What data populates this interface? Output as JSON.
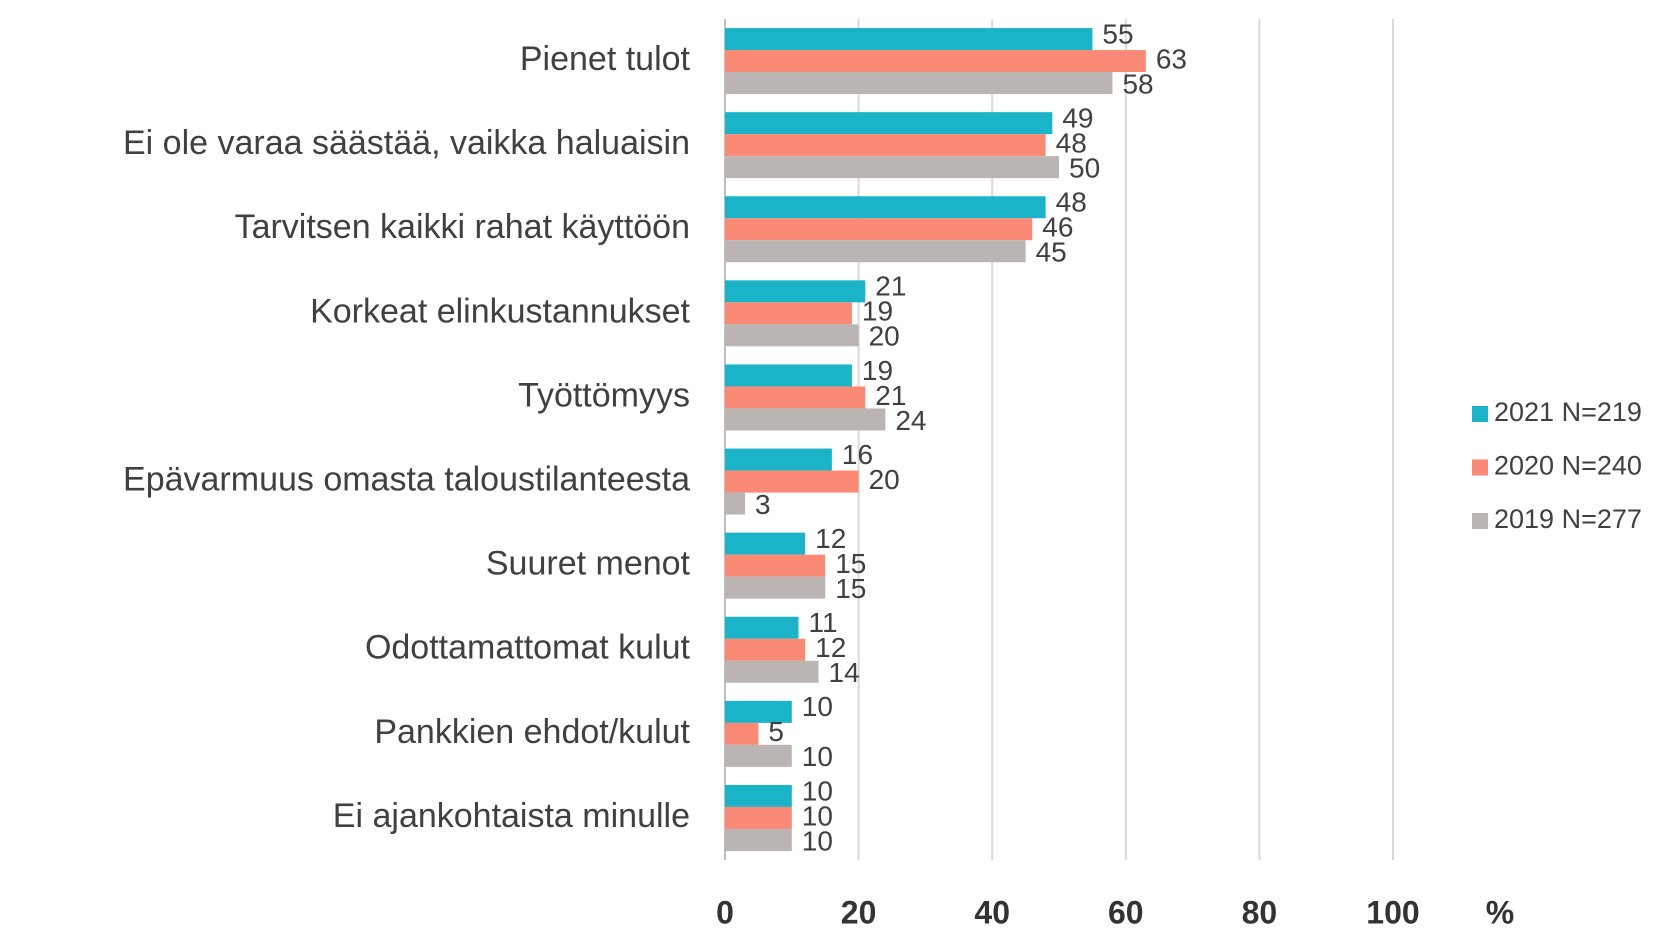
{
  "chart_data": {
    "type": "bar",
    "orientation": "horizontal",
    "categories": [
      "Pienet tulot",
      "Ei ole varaa säästää, vaikka haluaisin",
      "Tarvitsen kaikki rahat käyttöön",
      "Korkeat elinkustannukset",
      "Työttömyys",
      "Epävarmuus omasta taloustilanteesta",
      "Suuret menot",
      "Odottamattomat kulut",
      "Pankkien ehdot/kulut",
      "Ei ajankohtaista minulle"
    ],
    "series": [
      {
        "name": "2021 N=219",
        "color": "#1bb3c8",
        "values": [
          55,
          49,
          48,
          21,
          19,
          16,
          12,
          11,
          10,
          10
        ]
      },
      {
        "name": "2020 N=240",
        "color": "#fa8a75",
        "values": [
          63,
          48,
          46,
          19,
          21,
          20,
          15,
          12,
          5,
          10
        ]
      },
      {
        "name": "2019 N=277",
        "color": "#bab4b2",
        "values": [
          58,
          50,
          45,
          20,
          24,
          3,
          15,
          14,
          10,
          10
        ]
      }
    ],
    "x_label": "%",
    "xlim": [
      0,
      100
    ],
    "xticks": [
      0,
      20,
      40,
      60,
      80,
      100
    ],
    "grid": true,
    "legend": "right"
  }
}
